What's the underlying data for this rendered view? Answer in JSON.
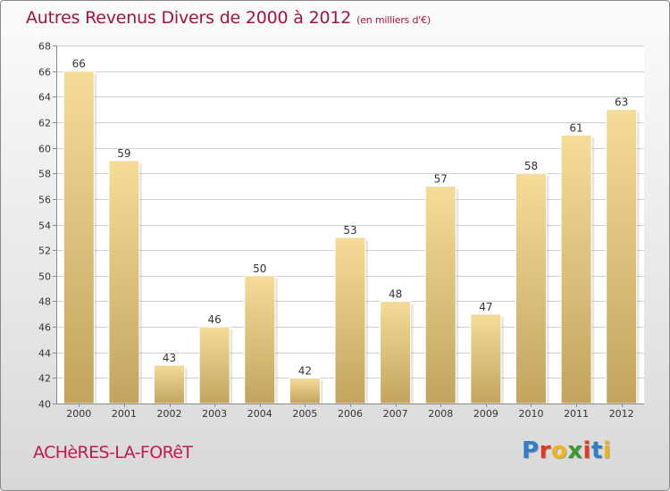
{
  "header": {
    "title": "Autres Revenus Divers de 2000 à 2012",
    "unit": "(en milliers d'€)"
  },
  "footer": {
    "location": "ACHèRES-LA-FORêT"
  },
  "logo": {
    "letters": [
      "P",
      "r",
      "o",
      "x",
      "i",
      "t",
      "i"
    ],
    "colors": [
      "#2f7fc8",
      "#e33a1f",
      "#f0b514",
      "#3a9a2e",
      "#e33a1f",
      "#2f7fc8",
      "#f0b514"
    ]
  },
  "colors": {
    "bar_light": "#f5dc98",
    "bar_dark": "#c2a45e",
    "plot_background": "#ffffff",
    "title": "#a8123a",
    "location": "#c8174c"
  },
  "chart_data": {
    "type": "bar",
    "title": "Autres Revenus Divers de 2000 à 2012",
    "subtitle": "(en milliers d'€)",
    "xlabel": "",
    "ylabel": "",
    "categories": [
      "2000",
      "2001",
      "2002",
      "2003",
      "2004",
      "2005",
      "2006",
      "2007",
      "2008",
      "2009",
      "2010",
      "2011",
      "2012"
    ],
    "values": [
      66,
      59,
      43,
      46,
      50,
      42,
      53,
      48,
      57,
      47,
      58,
      61,
      63
    ],
    "ylim": [
      40,
      68
    ],
    "yticks": [
      40,
      42,
      44,
      46,
      48,
      50,
      52,
      54,
      56,
      58,
      60,
      62,
      64,
      66,
      68
    ],
    "grid": "horizontal",
    "legend": "none"
  }
}
